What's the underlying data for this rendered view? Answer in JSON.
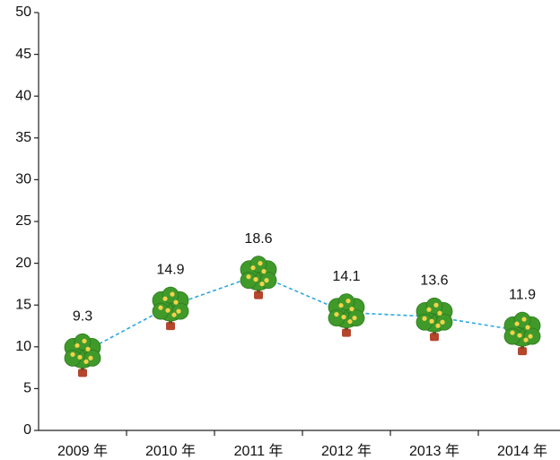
{
  "chart_data": {
    "type": "line",
    "categories": [
      "2009 年",
      "2010 年",
      "2011 年",
      "2012 年",
      "2013 年",
      "2014 年"
    ],
    "values": [
      9.3,
      14.9,
      18.6,
      14.1,
      13.6,
      11.9
    ],
    "color": "#29a8e0",
    "ylim": [
      0,
      50
    ],
    "yticks": [
      0,
      5,
      10,
      15,
      20,
      25,
      30,
      35,
      40,
      45,
      50
    ]
  }
}
